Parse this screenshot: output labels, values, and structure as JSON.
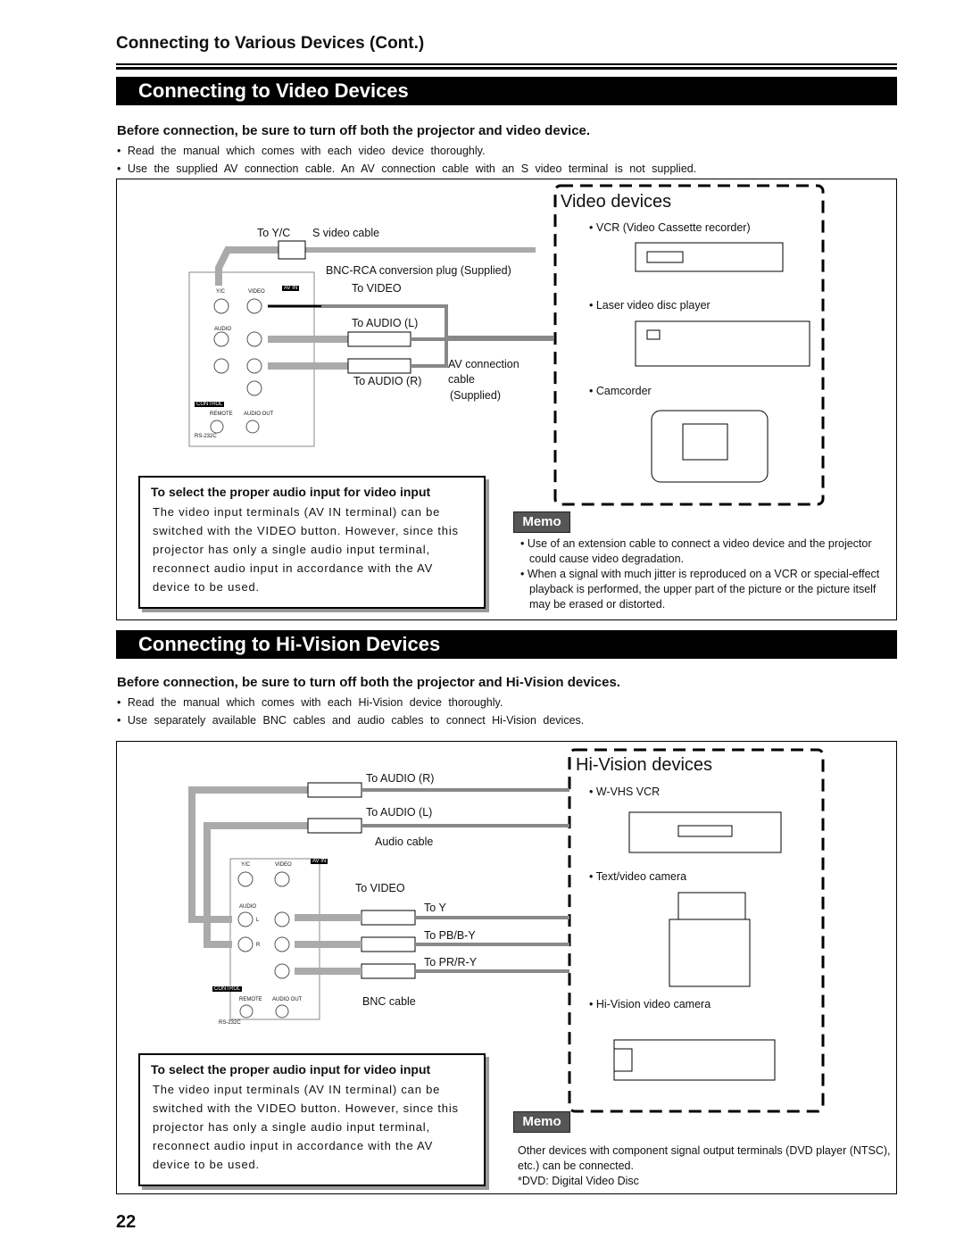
{
  "header": {
    "title": "Connecting to Various Devices (Cont.)",
    "page_number": "22"
  },
  "video_section": {
    "title": "Connecting to Video Devices",
    "warning": "Before connection, be sure to turn off both the projector and video device.",
    "bullets": [
      "Read the manual which comes with each video device thoroughly.",
      "Use the supplied AV connection cable. An AV connection cable with an S video terminal is not supplied."
    ],
    "diagram_labels": {
      "to_yc": "To Y/C",
      "s_video_cable": "S video cable",
      "bnc_rca_plug": "BNC-RCA conversion plug (Supplied)",
      "to_video": "To VIDEO",
      "to_audio_l": "To AUDIO (L)",
      "to_audio_r": "To AUDIO (R)",
      "av_cable": [
        "AV connection",
        "cable",
        "(Supplied)"
      ]
    },
    "panel_labels": {
      "yc": "Y/C",
      "video": "VIDEO",
      "av_in": "AV IN",
      "audio": "AUDIO",
      "control": "CONTROL",
      "remote": "REMOTE",
      "audio_out": "AUDIO OUT",
      "rs232c": "RS-232C"
    },
    "devices": {
      "title": "Video devices",
      "items": [
        "VCR (Video Cassette recorder)",
        "Laser video disc player",
        "Camcorder"
      ]
    },
    "note": {
      "title": "To select the proper audio input for video input",
      "lines": [
        "The video input terminals (AV IN terminal) can be",
        "switched with the VIDEO button. However, since this",
        "projector has only a single audio input terminal,",
        "reconnect audio input in accordance with the AV",
        "device to be used."
      ]
    },
    "memo": {
      "label": "Memo",
      "bullets": [
        "Use of an extension cable to connect a video device and the projector could cause video degradation.",
        "When a signal with much jitter is reproduced on a VCR or special-effect playback is performed, the upper part of the picture or the picture itself may be erased or distorted."
      ]
    }
  },
  "hivision_section": {
    "title": "Connecting to Hi-Vision Devices",
    "warning": "Before connection, be sure to turn off both the projector and Hi-Vision devices.",
    "bullets": [
      "Read the manual which comes with each Hi-Vision device thoroughly.",
      "Use separately available BNC cables and audio cables to connect Hi-Vision devices."
    ],
    "diagram_labels": {
      "to_audio_r": "To AUDIO (R)",
      "to_audio_l": "To AUDIO (L)",
      "audio_cable": "Audio cable",
      "to_video": "To VIDEO",
      "to_y": "To Y",
      "to_pb": "To PB/B-Y",
      "to_pr": "To PR/R-Y",
      "bnc_cable": "BNC cable"
    },
    "panel_labels": {
      "yc": "Y/C",
      "video": "VIDEO",
      "av_in": "AV IN",
      "audio": "AUDIO",
      "l": "L",
      "r": "R",
      "control": "CONTROL",
      "remote": "REMOTE",
      "audio_out": "AUDIO OUT",
      "rs232c": "RS-232C"
    },
    "devices": {
      "title": "Hi-Vision devices",
      "items": [
        "W-VHS VCR",
        "Text/video camera",
        "Hi-Vision video camera"
      ]
    },
    "note": {
      "title": "To select the proper audio input for video input",
      "lines": [
        "The video input terminals (AV IN terminal) can be",
        "switched with the VIDEO button. However, since this",
        "projector has only a single audio input terminal,",
        "reconnect audio input in accordance with the AV",
        "device to be used."
      ]
    },
    "memo": {
      "label": "Memo",
      "lines": [
        "Other devices with component signal output terminals (DVD player (NTSC), etc.) can be connected.",
        "*DVD: Digital Video Disc"
      ]
    }
  }
}
